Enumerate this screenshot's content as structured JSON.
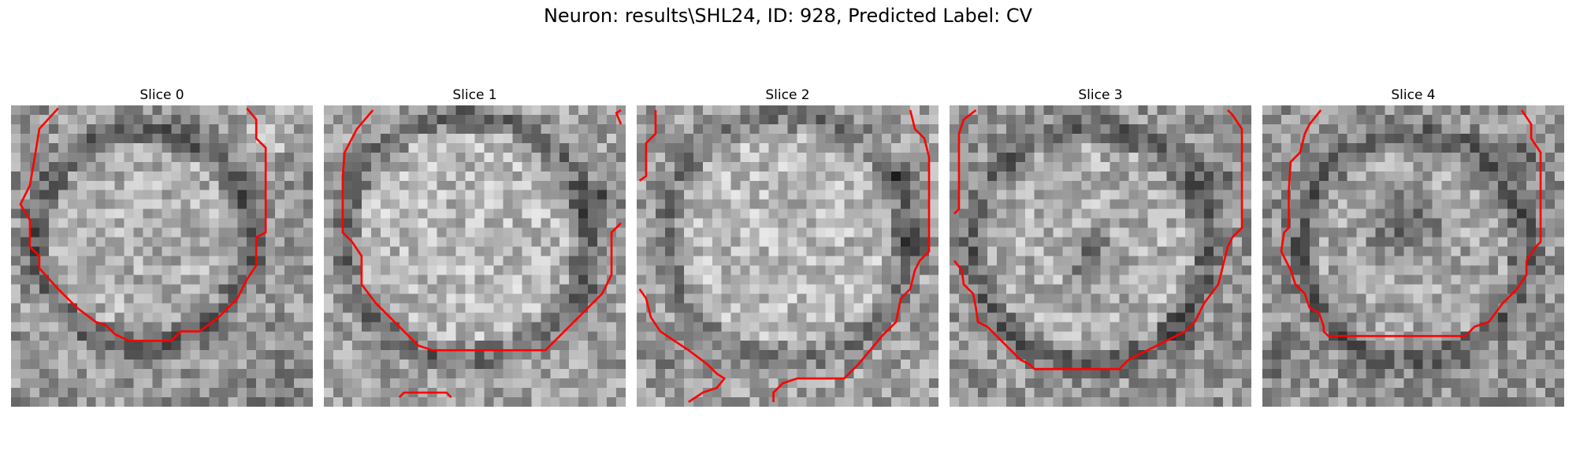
{
  "figure": {
    "title": "Neuron: results\\SHL24, ID: 928, Predicted Label: CV"
  },
  "contour_color": "#ff0000",
  "panels": [
    {
      "title": "Slice 0"
    },
    {
      "title": "Slice 1"
    },
    {
      "title": "Slice 2"
    },
    {
      "title": "Slice 3"
    },
    {
      "title": "Slice 4"
    }
  ]
}
